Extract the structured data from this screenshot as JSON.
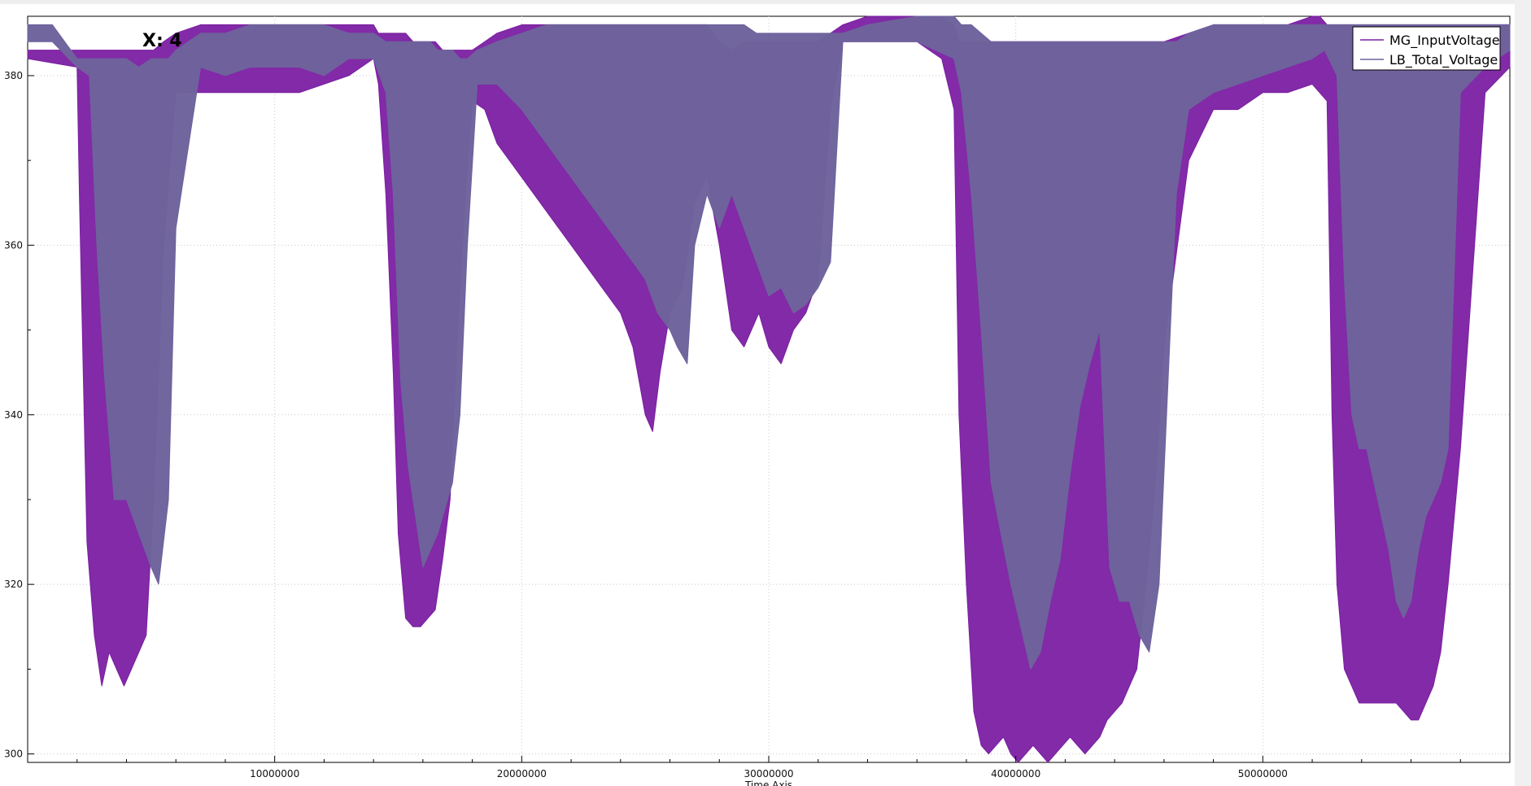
{
  "chart_data": {
    "type": "area",
    "title": "",
    "xlabel": "Time Axis",
    "ylabel": "",
    "xlim": [
      0,
      60000000
    ],
    "ylim": [
      299,
      387
    ],
    "x_ticks": [
      10000000,
      20000000,
      30000000,
      40000000,
      50000000
    ],
    "x_tick_labels": [
      "10000000",
      "20000000",
      "30000000",
      "40000000",
      "50000000"
    ],
    "y_ticks": [
      300,
      320,
      340,
      360,
      380
    ],
    "y_tick_labels": [
      "300",
      "320",
      "340",
      "360",
      "380"
    ],
    "grid": true,
    "legend_position": "top-right",
    "readout_text": "X: 4",
    "series": [
      {
        "name": "MG_InputVoltage",
        "color": "#7b1fa2",
        "x": [
          0,
          2000000,
          2100000,
          2400000,
          2700000,
          3000000,
          3300000,
          3600000,
          3900000,
          4200000,
          4500000,
          4800000,
          5100000,
          5500000,
          6000000,
          7000000,
          9000000,
          11000000,
          13000000,
          14000000,
          14200000,
          14500000,
          14800000,
          15000000,
          15300000,
          15600000,
          15900000,
          16200000,
          16500000,
          16800000,
          17100000,
          17400000,
          17700000,
          18000000,
          18500000,
          19000000,
          20000000,
          21000000,
          22000000,
          23000000,
          24000000,
          24500000,
          25000000,
          25300000,
          25600000,
          26000000,
          26500000,
          27000000,
          27500000,
          28000000,
          28500000,
          29000000,
          29300000,
          29600000,
          30000000,
          30500000,
          31000000,
          31500000,
          32000000,
          32500000,
          33000000,
          34000000,
          36000000,
          37000000,
          37500000,
          37700000,
          38000000,
          38300000,
          38600000,
          38900000,
          39200000,
          39500000,
          39800000,
          40100000,
          40400000,
          40700000,
          41000000,
          41300000,
          41600000,
          41900000,
          42200000,
          42500000,
          42800000,
          43100000,
          43400000,
          43700000,
          44000000,
          44300000,
          44600000,
          44900000,
          45200000,
          45600000,
          46000000,
          47000000,
          48000000,
          49000000,
          50000000,
          51000000,
          52000000,
          52300000,
          52600000,
          52800000,
          53000000,
          53300000,
          53600000,
          53900000,
          54200000,
          54500000,
          54800000,
          55100000,
          55400000,
          55700000,
          56000000,
          56300000,
          56600000,
          56900000,
          57200000,
          57500000,
          58000000,
          59000000,
          60000000
        ],
        "high": [
          383,
          383,
          383,
          383,
          383,
          383,
          383,
          383,
          383,
          383,
          383,
          383,
          383,
          384,
          385,
          386,
          386,
          386,
          386,
          386,
          385,
          385,
          385,
          385,
          385,
          384,
          384,
          384,
          384,
          383,
          383,
          383,
          383,
          383,
          384,
          385,
          386,
          386,
          386,
          386,
          386,
          386,
          386,
          386,
          386,
          386,
          386,
          386,
          386,
          384,
          383,
          384,
          384,
          384,
          384,
          384,
          384,
          384,
          384,
          385,
          386,
          387,
          387,
          387,
          386,
          384,
          384,
          384,
          384,
          384,
          384,
          384,
          384,
          384,
          384,
          384,
          384,
          384,
          384,
          384,
          384,
          384,
          384,
          384,
          384,
          384,
          384,
          384,
          384,
          384,
          384,
          384,
          384,
          385,
          386,
          386,
          386,
          386,
          387,
          387,
          386,
          386,
          386,
          386,
          386,
          386,
          386,
          386,
          386,
          386,
          386,
          386,
          386,
          386,
          386,
          386,
          386,
          386,
          386,
          386,
          386
        ],
        "low": [
          382,
          381,
          365,
          325,
          314,
          308,
          312,
          310,
          308,
          310,
          312,
          314,
          330,
          360,
          378,
          378,
          378,
          378,
          380,
          382,
          379,
          366,
          345,
          326,
          316,
          315,
          315,
          316,
          317,
          323,
          330,
          350,
          365,
          377,
          376,
          372,
          368,
          364,
          360,
          356,
          352,
          348,
          340,
          338,
          345,
          352,
          355,
          365,
          368,
          360,
          350,
          348,
          350,
          352,
          348,
          346,
          350,
          352,
          356,
          376,
          384,
          384,
          384,
          382,
          376,
          340,
          320,
          305,
          301,
          300,
          301,
          302,
          300,
          299,
          300,
          301,
          300,
          299,
          300,
          301,
          302,
          301,
          300,
          301,
          302,
          304,
          305,
          306,
          308,
          310,
          318,
          330,
          348,
          370,
          376,
          376,
          378,
          378,
          379,
          378,
          377,
          340,
          320,
          310,
          308,
          306,
          306,
          306,
          306,
          306,
          306,
          305,
          304,
          304,
          306,
          308,
          312,
          320,
          336,
          378,
          381
        ]
      },
      {
        "name": "LB_Total_Voltage",
        "color": "#6e639c",
        "x": [
          0,
          1000000,
          2000000,
          2500000,
          2800000,
          3100000,
          3500000,
          4000000,
          4500000,
          5000000,
          5300000,
          5700000,
          6000000,
          7000000,
          8000000,
          9000000,
          10000000,
          11000000,
          12000000,
          13000000,
          14000000,
          14500000,
          14800000,
          15100000,
          15400000,
          15700000,
          16000000,
          16300000,
          16600000,
          16900000,
          17200000,
          17500000,
          17800000,
          18200000,
          19000000,
          20000000,
          21000000,
          22000000,
          23000000,
          24000000,
          25000000,
          25500000,
          26000000,
          26300000,
          26700000,
          27000000,
          27500000,
          28000000,
          28500000,
          29000000,
          29500000,
          30000000,
          30500000,
          31000000,
          31500000,
          32000000,
          32500000,
          33000000,
          34000000,
          36000000,
          37500000,
          37800000,
          38200000,
          38600000,
          39000000,
          39400000,
          39800000,
          40200000,
          40600000,
          41000000,
          41400000,
          41800000,
          42200000,
          42600000,
          43000000,
          43400000,
          43800000,
          44200000,
          44600000,
          45000000,
          45400000,
          45800000,
          46500000,
          47000000,
          48000000,
          49000000,
          50000000,
          51000000,
          52000000,
          52500000,
          53000000,
          53300000,
          53600000,
          53900000,
          54200000,
          54500000,
          54800000,
          55100000,
          55400000,
          55700000,
          56000000,
          56300000,
          56600000,
          56900000,
          57200000,
          57500000,
          58000000,
          59000000,
          60000000
        ],
        "high": [
          386,
          386,
          382,
          382,
          382,
          382,
          382,
          382,
          381,
          382,
          382,
          382,
          383,
          385,
          385,
          386,
          386,
          386,
          386,
          385,
          385,
          384,
          384,
          384,
          384,
          384,
          384,
          384,
          383,
          383,
          383,
          382,
          382,
          383,
          384,
          385,
          386,
          386,
          386,
          386,
          386,
          386,
          386,
          386,
          386,
          386,
          386,
          386,
          386,
          386,
          385,
          385,
          385,
          385,
          385,
          385,
          385,
          385,
          386,
          387,
          387,
          386,
          386,
          385,
          384,
          384,
          384,
          384,
          384,
          384,
          384,
          384,
          384,
          384,
          384,
          384,
          384,
          384,
          384,
          384,
          384,
          384,
          384,
          385,
          386,
          386,
          386,
          386,
          386,
          386,
          386,
          386,
          386,
          386,
          386,
          386,
          386,
          386,
          386,
          386,
          386,
          386,
          386,
          386,
          386,
          386,
          386,
          386,
          386
        ],
        "low": [
          384,
          384,
          381,
          380,
          360,
          345,
          330,
          330,
          326,
          322,
          320,
          330,
          362,
          381,
          380,
          381,
          381,
          381,
          380,
          382,
          382,
          378,
          366,
          344,
          334,
          328,
          322,
          324,
          326,
          329,
          332,
          340,
          360,
          379,
          379,
          376,
          372,
          368,
          364,
          360,
          356,
          352,
          350,
          348,
          346,
          360,
          366,
          362,
          366,
          362,
          358,
          354,
          355,
          352,
          353,
          355,
          358,
          384,
          384,
          384,
          382,
          378,
          366,
          350,
          332,
          326,
          320,
          315,
          310,
          312,
          318,
          323,
          333,
          341,
          346,
          350,
          322,
          318,
          318,
          314,
          312,
          320,
          366,
          376,
          378,
          379,
          380,
          381,
          382,
          383,
          380,
          356,
          340,
          336,
          336,
          332,
          328,
          324,
          318,
          316,
          318,
          324,
          328,
          330,
          332,
          336,
          378,
          381,
          383
        ]
      }
    ]
  }
}
